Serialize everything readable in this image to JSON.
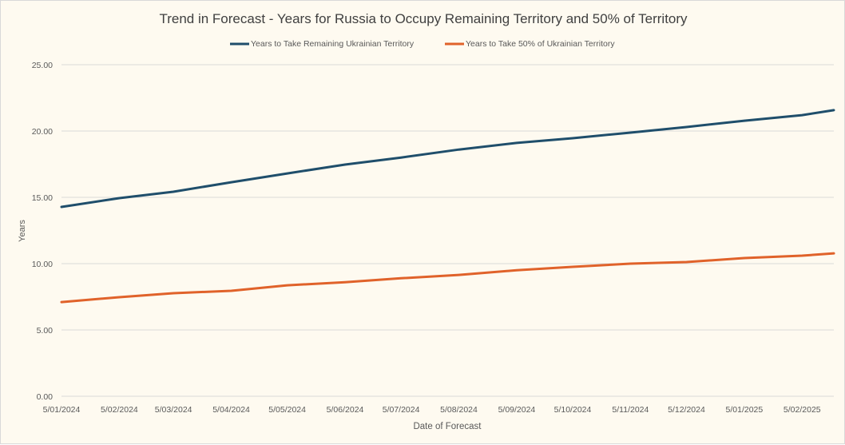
{
  "chart_data": {
    "type": "line",
    "title": "Trend in Forecast - Years for Russia to Occupy Remaining Territory and 50% of Territory",
    "xlabel": "Date of Forecast",
    "ylabel": "Years",
    "ylim": [
      0,
      25
    ],
    "yticks": [
      "0.00",
      "5.00",
      "10.00",
      "15.00",
      "20.00",
      "25.00"
    ],
    "x_unit": "days since 5/01/2024",
    "xlim": [
      0,
      414
    ],
    "xtick_positions": [
      0,
      31,
      60,
      91,
      121,
      152,
      182,
      213,
      244,
      274,
      305,
      335,
      366,
      397
    ],
    "xtick_labels": [
      "5/01/2024",
      "5/02/2024",
      "5/03/2024",
      "5/04/2024",
      "5/05/2024",
      "5/06/2024",
      "5/07/2024",
      "5/08/2024",
      "5/09/2024",
      "5/10/2024",
      "5/11/2024",
      "5/12/2024",
      "5/01/2025",
      "5/02/2025"
    ],
    "grid": true,
    "legend_position": "top",
    "x": [
      0,
      31,
      60,
      91,
      121,
      152,
      182,
      213,
      244,
      274,
      305,
      335,
      366,
      397,
      414
    ],
    "series": [
      {
        "name": "Years to Take Remaining Ukrainian Territory",
        "color": "#1f4e6b",
        "values": [
          14.28,
          14.94,
          15.42,
          16.14,
          16.8,
          17.47,
          18.0,
          18.6,
          19.1,
          19.46,
          19.88,
          20.3,
          20.78,
          21.2,
          21.57
        ]
      },
      {
        "name": "Years to Take  50% of Ukrainian Territory",
        "color": "#e0622a",
        "values": [
          7.1,
          7.47,
          7.77,
          7.95,
          8.37,
          8.6,
          8.9,
          9.15,
          9.5,
          9.76,
          10.0,
          10.12,
          10.42,
          10.6,
          10.78
        ]
      }
    ]
  }
}
